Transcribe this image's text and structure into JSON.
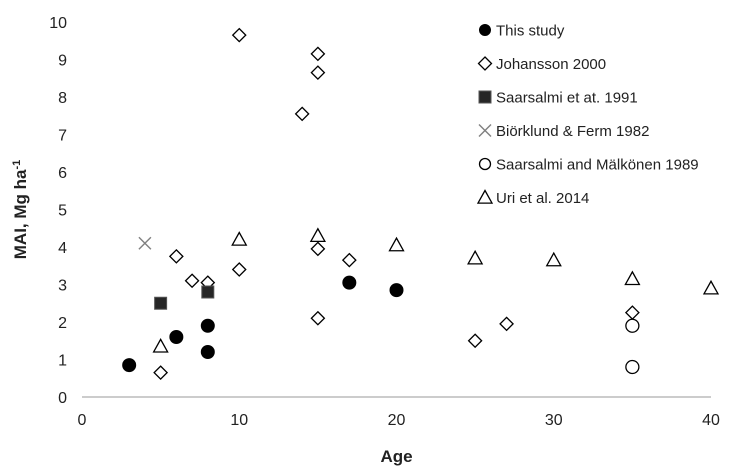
{
  "chart_data": {
    "type": "scatter",
    "xlabel": "Age",
    "ylabel": "MAI, Mg ha",
    "ylabel_sup": "-1",
    "xlim": [
      0,
      40
    ],
    "ylim": [
      0,
      10
    ],
    "xticks": [
      0,
      10,
      20,
      30,
      40
    ],
    "yticks": [
      0,
      1,
      2,
      3,
      4,
      5,
      6,
      7,
      8,
      9,
      10
    ],
    "grid": false,
    "legend_position": "top-right",
    "series": [
      {
        "name": "This study",
        "marker": "circle-filled",
        "color": "#000000",
        "points": [
          [
            3,
            0.85
          ],
          [
            6,
            1.6
          ],
          [
            8,
            1.9
          ],
          [
            8,
            1.2
          ],
          [
            17,
            3.05
          ],
          [
            20,
            2.85
          ]
        ]
      },
      {
        "name": "Johansson 2000",
        "marker": "diamond-open",
        "color": "#000000",
        "points": [
          [
            5,
            0.65
          ],
          [
            6,
            3.75
          ],
          [
            7,
            3.1
          ],
          [
            8,
            3.05
          ],
          [
            10,
            9.65
          ],
          [
            10,
            3.4
          ],
          [
            14,
            7.55
          ],
          [
            15,
            9.15
          ],
          [
            15,
            8.65
          ],
          [
            15,
            3.95
          ],
          [
            15,
            2.1
          ],
          [
            17,
            3.65
          ],
          [
            25,
            1.5
          ],
          [
            27,
            1.95
          ],
          [
            35,
            2.25
          ]
        ]
      },
      {
        "name": "Saarsalmi et at. 1991",
        "marker": "square-filled",
        "color": "#000000",
        "points": [
          [
            5,
            2.5
          ],
          [
            8,
            2.8
          ]
        ]
      },
      {
        "name": "Biörklund & Ferm 1982",
        "marker": "x",
        "color": "#808080",
        "points": [
          [
            4,
            4.1
          ]
        ]
      },
      {
        "name": "Saarsalmi and Mälkönen 1989",
        "marker": "circle-open",
        "color": "#000000",
        "points": [
          [
            35,
            1.9
          ],
          [
            35,
            0.8
          ]
        ]
      },
      {
        "name": "Uri et al. 2014",
        "marker": "triangle-open",
        "color": "#000000",
        "points": [
          [
            5,
            1.35
          ],
          [
            10,
            4.2
          ],
          [
            15,
            4.3
          ],
          [
            20,
            4.05
          ],
          [
            25,
            3.7
          ],
          [
            30,
            3.65
          ],
          [
            35,
            3.15
          ],
          [
            40,
            2.9
          ]
        ]
      }
    ]
  }
}
